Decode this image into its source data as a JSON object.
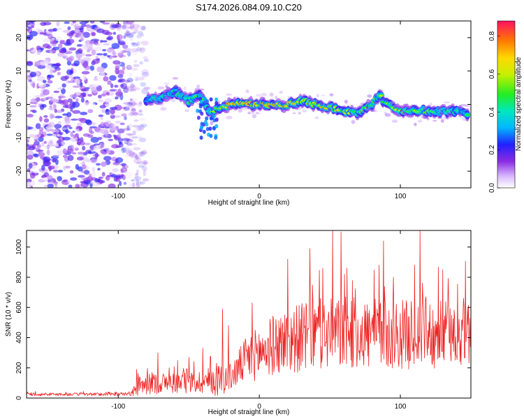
{
  "title": "S174.2026.084.09.10.C20",
  "chart_data": [
    {
      "type": "heatmap",
      "name": "spectrogram",
      "xlabel": "Height of straight line (km)",
      "ylabel": "Frequency (Hz)",
      "xlim": [
        -165,
        150
      ],
      "ylim": [
        -25,
        25
      ],
      "xticks": [
        -100,
        0,
        100
      ],
      "yticks": [
        20,
        10,
        0,
        -10,
        -20
      ],
      "colorbar": {
        "label": "Normalized spectral amplitude",
        "range": [
          0,
          0.88
        ],
        "ticks": [
          0.0,
          0.2,
          0.4,
          0.6,
          0.8
        ]
      },
      "ridge": {
        "x": [
          -80,
          -70,
          -60,
          -50,
          -42,
          -35,
          -28,
          -20,
          -10,
          0,
          10,
          20,
          30,
          40,
          50,
          60,
          70,
          80,
          85,
          90,
          100,
          110,
          120,
          130,
          140,
          148
        ],
        "frequency": [
          1,
          2,
          4,
          1,
          3,
          -2,
          -1,
          0,
          0,
          0,
          -0.5,
          0,
          1,
          0,
          -1,
          -2,
          -3,
          0,
          3,
          0,
          -2,
          -2,
          -2,
          -2,
          -2,
          -3
        ],
        "peak_amplitude": [
          0.35,
          0.4,
          0.45,
          0.45,
          0.5,
          0.55,
          0.6,
          0.85,
          0.8,
          0.8,
          0.8,
          0.75,
          0.7,
          0.7,
          0.65,
          0.6,
          0.6,
          0.55,
          0.55,
          0.55,
          0.6,
          0.6,
          0.55,
          0.5,
          0.5,
          0.45
        ]
      },
      "noise_region": {
        "x_range": [
          -165,
          -90
        ],
        "frequency_range": [
          -25,
          25
        ],
        "amplitude": 0.15
      }
    },
    {
      "type": "line",
      "name": "snr",
      "xlabel": "Height of straight line (km)",
      "ylabel": "SNR (10 * v/v)",
      "xlim": [
        -165,
        150
      ],
      "ylim": [
        0,
        1110
      ],
      "xticks": [
        -100,
        0,
        100
      ],
      "yticks": [
        0,
        200,
        400,
        600,
        800,
        1000
      ],
      "color": "#ee2222",
      "envelope": {
        "x": [
          -165,
          -130,
          -100,
          -90,
          -88,
          -80,
          -70,
          -60,
          -50,
          -40,
          -30,
          -20,
          -10,
          0,
          10,
          20,
          30,
          40,
          50,
          60,
          70,
          80,
          90,
          100,
          110,
          120,
          130,
          140,
          150
        ],
        "mean": [
          25,
          25,
          25,
          30,
          70,
          90,
          100,
          100,
          100,
          110,
          120,
          140,
          250,
          300,
          350,
          380,
          400,
          420,
          420,
          430,
          430,
          420,
          420,
          420,
          420,
          430,
          420,
          440,
          440
        ],
        "spread": [
          10,
          10,
          10,
          15,
          60,
          70,
          70,
          70,
          70,
          80,
          110,
          90,
          150,
          180,
          200,
          220,
          230,
          240,
          240,
          240,
          240,
          240,
          230,
          230,
          230,
          230,
          230,
          230,
          230
        ]
      },
      "spikes": [
        {
          "x": -87,
          "y": 190
        },
        {
          "x": -72,
          "y": 300
        },
        {
          "x": -58,
          "y": 250
        },
        {
          "x": -50,
          "y": 270
        },
        {
          "x": -40,
          "y": 330
        },
        {
          "x": -26,
          "y": 590
        },
        {
          "x": -22,
          "y": 480
        },
        {
          "x": -5,
          "y": 630
        },
        {
          "x": 20,
          "y": 920
        },
        {
          "x": 36,
          "y": 990
        },
        {
          "x": 45,
          "y": 860
        },
        {
          "x": 52,
          "y": 1110
        },
        {
          "x": 58,
          "y": 1100
        },
        {
          "x": 62,
          "y": 860
        },
        {
          "x": 85,
          "y": 880
        },
        {
          "x": 88,
          "y": 1040
        },
        {
          "x": 95,
          "y": 800
        },
        {
          "x": 110,
          "y": 880
        },
        {
          "x": 114,
          "y": 1110
        },
        {
          "x": 130,
          "y": 850
        },
        {
          "x": 146,
          "y": 905
        }
      ]
    }
  ]
}
